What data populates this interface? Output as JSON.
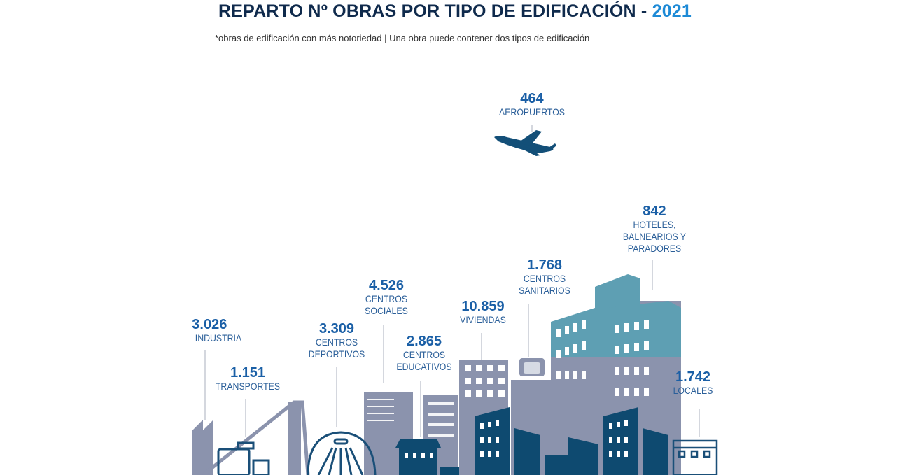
{
  "title": {
    "text": "REPARTO Nº OBRAS POR TIPO DE EDIFICACIÓN - ",
    "year": "2021"
  },
  "subtitle": "*obras de edificación con más notoriedad | Una obra puede contener dos tipos de edificación",
  "colors": {
    "title": "#0f2a4c",
    "year": "#1d8ad6",
    "number": "#1a5fa6",
    "label": "#2b5f99",
    "building_gray": "#8b93ad",
    "building_teal": "#5e9fb3",
    "building_dark": "#0e4a70"
  },
  "chart_data": {
    "type": "table",
    "title": "REPARTO Nº OBRAS POR TIPO DE EDIFICACIÓN - 2021",
    "categories": [
      "AEROPUERTOS",
      "HOTELES, BALNEARIOS Y PARADORES",
      "CENTROS SANITARIOS",
      "CENTROS SOCIALES",
      "VIVIENDAS",
      "INDUSTRIA",
      "CENTROS DEPORTIVOS",
      "CENTROS EDUCATIVOS",
      "TRANSPORTES",
      "LOCALES"
    ],
    "values": [
      464,
      842,
      1768,
      4526,
      10859,
      3026,
      3309,
      2865,
      1151,
      1742
    ],
    "items": [
      {
        "value": "464",
        "lines": [
          "AEROPUERTOS"
        ],
        "icon": "airplane-icon"
      },
      {
        "value": "842",
        "lines": [
          "HOTELES,",
          "BALNEARIOS Y",
          "PARADORES"
        ],
        "icon": "hotel-building-icon"
      },
      {
        "value": "1.768",
        "lines": [
          "CENTROS",
          "SANITARIOS"
        ],
        "icon": "hospital-icon"
      },
      {
        "value": "4.526",
        "lines": [
          "CENTROS",
          "SOCIALES"
        ],
        "icon": "social-building-icon"
      },
      {
        "value": "10.859",
        "lines": [
          "VIVIENDAS"
        ],
        "icon": "apartment-icon"
      },
      {
        "value": "3.026",
        "lines": [
          "INDUSTRIA"
        ],
        "icon": "factory-icon"
      },
      {
        "value": "3.309",
        "lines": [
          "CENTROS",
          "DEPORTIVOS"
        ],
        "icon": "stadium-icon"
      },
      {
        "value": "2.865",
        "lines": [
          "CENTROS",
          "EDUCATIVOS"
        ],
        "icon": "school-icon"
      },
      {
        "value": "1.151",
        "lines": [
          "TRANSPORTES"
        ],
        "icon": "bridge-icon"
      },
      {
        "value": "1.742",
        "lines": [
          "LOCALES"
        ],
        "icon": "shop-icon"
      }
    ]
  }
}
